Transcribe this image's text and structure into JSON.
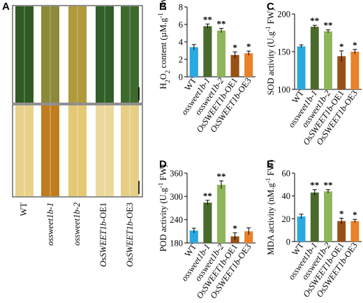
{
  "panels": {
    "A": {
      "letter": "A",
      "categories": [
        "WT",
        "ossweet1b-1",
        "ossweet1b-2",
        "OsSWEET1b-OE1",
        "OsSWEET1b-OE3"
      ],
      "italic_parts": [
        [
          "",
          "",
          ""
        ],
        [
          "",
          "ossweet1b-1",
          ""
        ],
        [
          "",
          "ossweet1b-2",
          ""
        ],
        [
          "",
          "OsSWEET1b",
          "-OE1"
        ],
        [
          "",
          "OsSWEET1b",
          "-OE3"
        ]
      ],
      "top_leaf_colors": [
        "#2f5a24",
        "#8c8a3a",
        "#b09a3c",
        "#2f5e26",
        "#3d6a2c"
      ],
      "bottom_leaf_colors": [
        "#e8d28a",
        "#c07d1e",
        "#e4c872",
        "#ecd89a",
        "#e6cf85"
      ]
    },
    "B": {
      "letter": "B"
    },
    "C": {
      "letter": "C"
    },
    "D": {
      "letter": "D"
    },
    "E": {
      "letter": "E"
    }
  },
  "chart_data": [
    {
      "panel": "B",
      "type": "bar",
      "categories": [
        "WT",
        "ossweet1b-1",
        "ossweet1b-2",
        "OsSWEET1b-OE1",
        "OsSWEET1b-OE3"
      ],
      "values": [
        3.4,
        5.8,
        5.3,
        2.5,
        2.7
      ],
      "errors": [
        0.3,
        0.25,
        0.25,
        0.35,
        0.25
      ],
      "significance": [
        "",
        "**",
        "**",
        "*",
        "*"
      ],
      "colors": [
        "#2aa9e0",
        "#4a6a2c",
        "#8fb55a",
        "#9a4f14",
        "#e8812a"
      ],
      "ylabel": "H2O2 content (µM.g-1 FW)",
      "ylim": [
        0,
        8
      ],
      "yticks": [
        0,
        2,
        4,
        6,
        8
      ],
      "grid": false
    },
    {
      "panel": "C",
      "type": "bar",
      "categories": [
        "WT",
        "ossweet1b-1",
        "ossweet1b-2",
        "OsSWEET1b-OE1",
        "OsSWEET1b-OE3"
      ],
      "values": [
        157,
        183,
        177,
        144,
        150
      ],
      "errors": [
        2,
        2,
        2,
        7,
        3
      ],
      "significance": [
        "",
        "**",
        "**",
        "*",
        "*"
      ],
      "colors": [
        "#2aa9e0",
        "#4a6a2c",
        "#8fb55a",
        "#9a4f14",
        "#e8812a"
      ],
      "ylabel": "SOD activity (U.g-1 FW)",
      "ylim": [
        100,
        200
      ],
      "yticks": [
        100,
        150,
        200
      ],
      "grid": false
    },
    {
      "panel": "D",
      "type": "bar",
      "categories": [
        "WT",
        "ossweet1b-1",
        "ossweet1b-2",
        "OsSWEET1b-OE1",
        "OsSWEET1b-OE3"
      ],
      "values": [
        212,
        284,
        330,
        197,
        210
      ],
      "errors": [
        6,
        6,
        10,
        9,
        9
      ],
      "significance": [
        "",
        "**",
        "**",
        "*",
        ""
      ],
      "colors": [
        "#2aa9e0",
        "#4a6a2c",
        "#8fb55a",
        "#9a4f14",
        "#e8812a"
      ],
      "ylabel": "POD activity (U.g-1 FW)",
      "ylim": [
        180,
        360
      ],
      "yticks": [
        180,
        240,
        300,
        360
      ],
      "grid": false
    },
    {
      "panel": "E",
      "type": "bar",
      "categories": [
        "WT",
        "ossweet1b-1",
        "ossweet1b-2",
        "OsSWEET1b-OE1",
        "OsSWEET1b-OE3"
      ],
      "values": [
        22,
        43,
        44,
        18,
        18
      ],
      "errors": [
        2,
        2.5,
        1.5,
        2.5,
        1.5
      ],
      "significance": [
        "",
        "**",
        "**",
        "*",
        "*"
      ],
      "colors": [
        "#2aa9e0",
        "#4a6a2c",
        "#8fb55a",
        "#9a4f14",
        "#e8812a"
      ],
      "ylabel": "MDA activity (nM.g-1 FW)",
      "ylim": [
        0,
        60
      ],
      "yticks": [
        0,
        20,
        40,
        60
      ],
      "grid": false
    }
  ]
}
